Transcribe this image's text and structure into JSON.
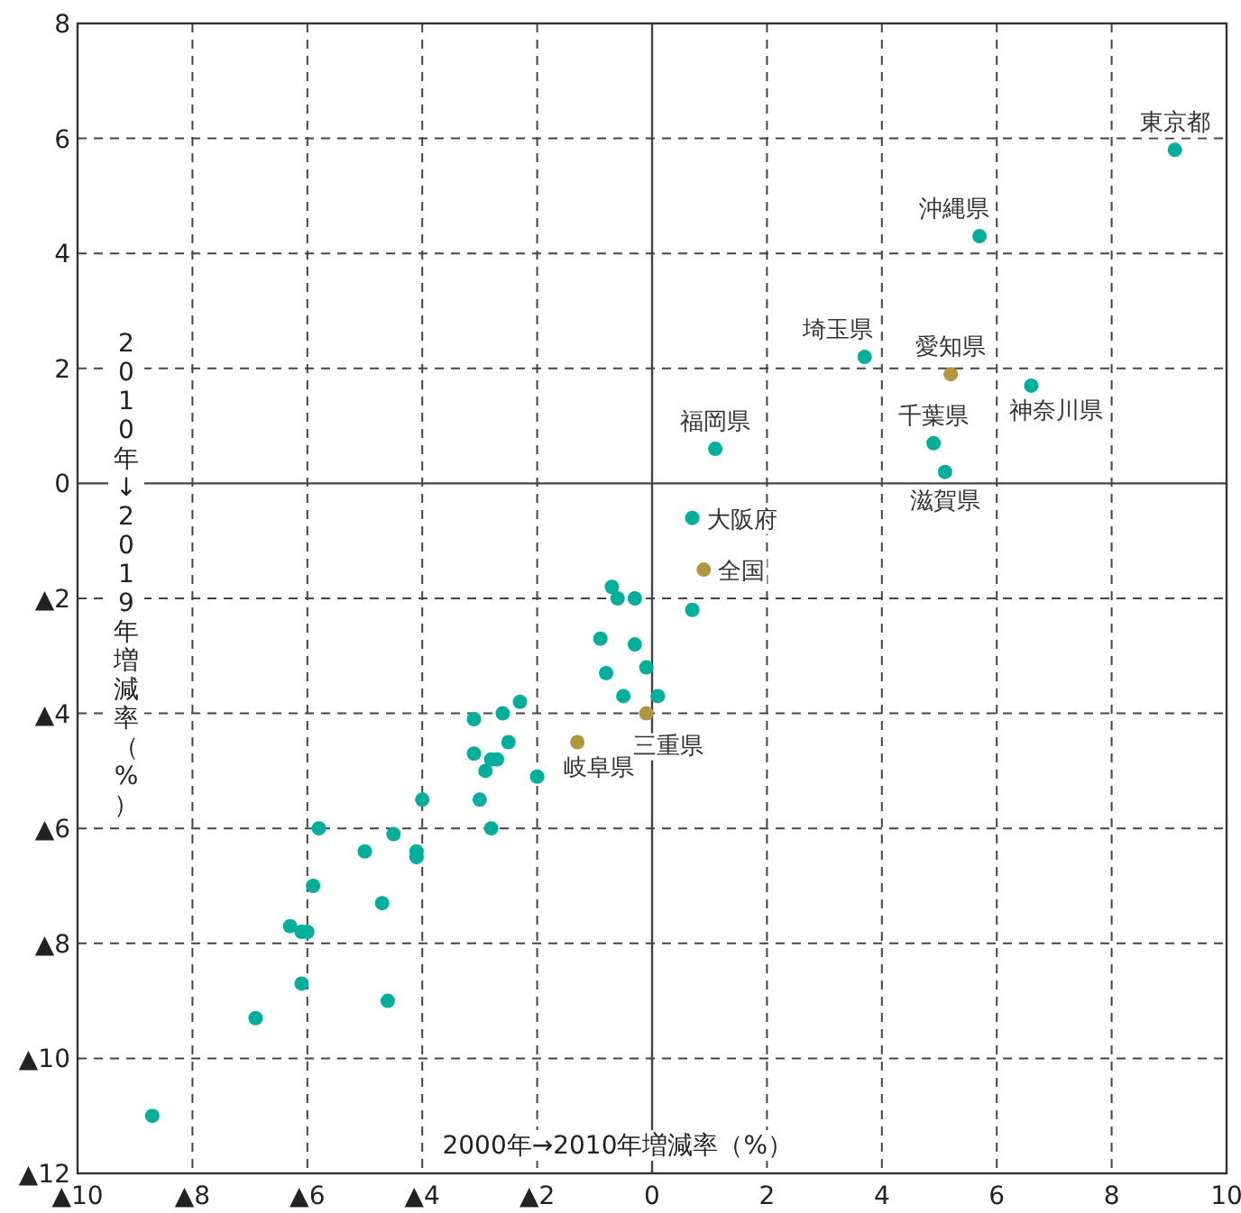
{
  "chart_data": {
    "type": "scatter",
    "xlabel": "2000年→2010年増減率（%）",
    "ylabel": "2010年↓2019年増減率（%）",
    "xlim": [
      -10,
      10
    ],
    "ylim": [
      -12,
      8
    ],
    "xticks": [
      {
        "value": -10,
        "label": "▲10"
      },
      {
        "value": -8,
        "label": "▲8"
      },
      {
        "value": -6,
        "label": "▲6"
      },
      {
        "value": -4,
        "label": "▲4"
      },
      {
        "value": -2,
        "label": "▲2"
      },
      0,
      2,
      4,
      6,
      8,
      10
    ],
    "yticks": [
      {
        "value": -12,
        "label": "▲12"
      },
      {
        "value": -10,
        "label": "▲10"
      },
      {
        "value": -8,
        "label": "▲8"
      },
      {
        "value": -6,
        "label": "▲6"
      },
      {
        "value": -4,
        "label": "▲4"
      },
      {
        "value": -2,
        "label": "▲2"
      },
      0,
      2,
      4,
      6,
      8
    ],
    "grid": true,
    "marker": "circle",
    "series": [
      {
        "color": "#00ae9c",
        "x": [
          9.1,
          5.7,
          3.7,
          6.6,
          4.9,
          1.1,
          5.1,
          0.7,
          -0.7,
          -0.6,
          -0.3,
          0.7,
          -0.9,
          -0.3,
          -0.1,
          -0.8,
          -0.5,
          0.1,
          -2.0,
          -2.3,
          -2.6,
          -3.1,
          -2.5,
          -3.1,
          -2.8,
          -2.7,
          -2.9,
          -4.0,
          -3.0,
          -2.8,
          -5.8,
          -4.5,
          -5.0,
          -4.1,
          -4.1,
          -5.9,
          -4.7,
          -6.3,
          -6.1,
          -6.0,
          -6.1,
          -4.6,
          -6.9,
          -8.7
        ],
        "values": [
          5.8,
          4.3,
          2.2,
          1.7,
          0.7,
          0.6,
          0.2,
          -0.6,
          -1.8,
          -2.0,
          -2.0,
          -2.2,
          -2.7,
          -2.8,
          -3.2,
          -3.3,
          -3.7,
          -3.7,
          -5.1,
          -3.8,
          -4.0,
          -4.1,
          -4.5,
          -4.7,
          -4.8,
          -4.8,
          -5.0,
          -5.5,
          -5.5,
          -6.0,
          -6.0,
          -6.1,
          -6.4,
          -6.4,
          -6.5,
          -7.0,
          -7.3,
          -7.7,
          -7.8,
          -7.8,
          -8.7,
          -9.0,
          -9.3,
          -11.0
        ]
      },
      {
        "color": "#b0963e",
        "x": [
          5.2,
          0.9,
          -0.1,
          -1.3
        ],
        "values": [
          1.9,
          -1.5,
          -4.0,
          -4.5
        ]
      }
    ],
    "annotations": [
      {
        "text": "東京都",
        "x": 9.1,
        "y": 5.8
      },
      {
        "text": "沖縄県",
        "x": 5.7,
        "y": 4.3
      },
      {
        "text": "埼玉県",
        "x": 3.7,
        "y": 2.2
      },
      {
        "text": "愛知県",
        "x": 5.2,
        "y": 1.9
      },
      {
        "text": "神奈川県",
        "x": 6.6,
        "y": 1.7
      },
      {
        "text": "千葉県",
        "x": 4.9,
        "y": 0.7
      },
      {
        "text": "福岡県",
        "x": 1.1,
        "y": 0.6
      },
      {
        "text": "滋賀県",
        "x": 5.1,
        "y": 0.2
      },
      {
        "text": "大阪府",
        "x": 0.7,
        "y": -0.6
      },
      {
        "text": "全国",
        "x": 0.9,
        "y": -1.5
      },
      {
        "text": "三重県",
        "x": -0.1,
        "y": -4.0
      },
      {
        "text": "岐阜県",
        "x": -1.3,
        "y": -4.5
      }
    ]
  }
}
